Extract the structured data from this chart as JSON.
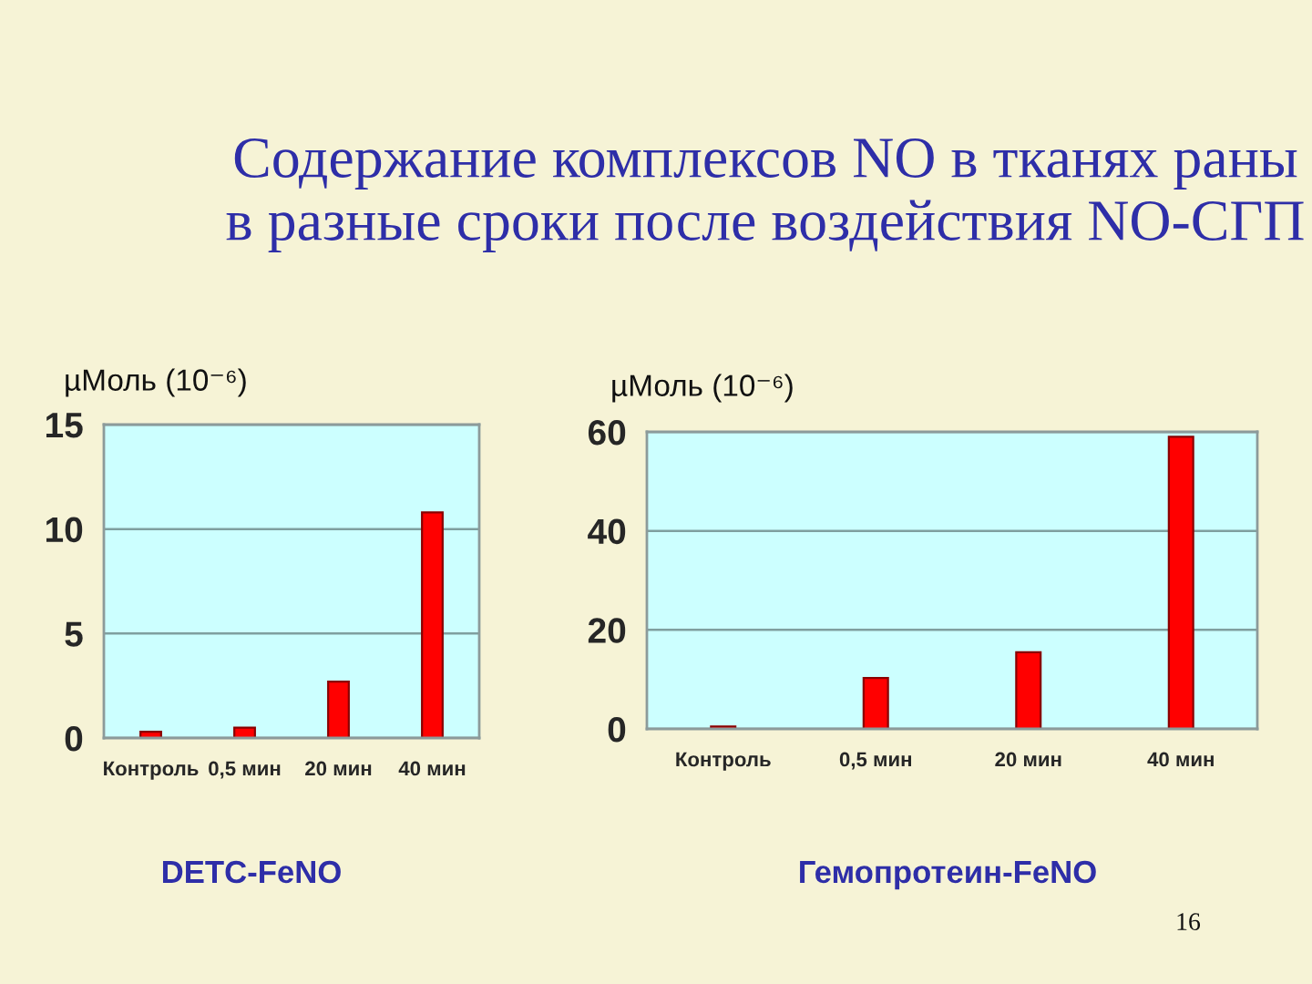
{
  "chart_data": [
    {
      "type": "bar",
      "title": "Содержание комплексов NO в тканях раны в разные сроки после воздействия NO-СГП",
      "ylabel": "µМоль (10⁻⁶)",
      "xlabel": "DETC-FeNO",
      "categories": [
        "Контроль",
        "0,5 мин",
        "20 мин",
        "40 мин"
      ],
      "series": [
        {
          "color": "#ff0000",
          "values": [
            0.3,
            0.5,
            2.7,
            10.8
          ]
        }
      ],
      "ylim": [
        0,
        15
      ],
      "yticks": [
        0,
        5,
        10,
        15
      ],
      "grid": "y"
    },
    {
      "type": "bar",
      "ylabel": "µМоль (10⁻⁶)",
      "xlabel": "Гемопротеин-FeNO",
      "categories": [
        "Контроль",
        "0,5 мин",
        "20 мин",
        "40 мин"
      ],
      "series": [
        {
          "color": "#ff0000",
          "values": [
            0.5,
            10.3,
            15.5,
            59
          ]
        }
      ],
      "ylim": [
        0,
        60
      ],
      "yticks": [
        0,
        20,
        40,
        60
      ],
      "grid": "y",
      "annotations": [
        "16"
      ]
    }
  ]
}
